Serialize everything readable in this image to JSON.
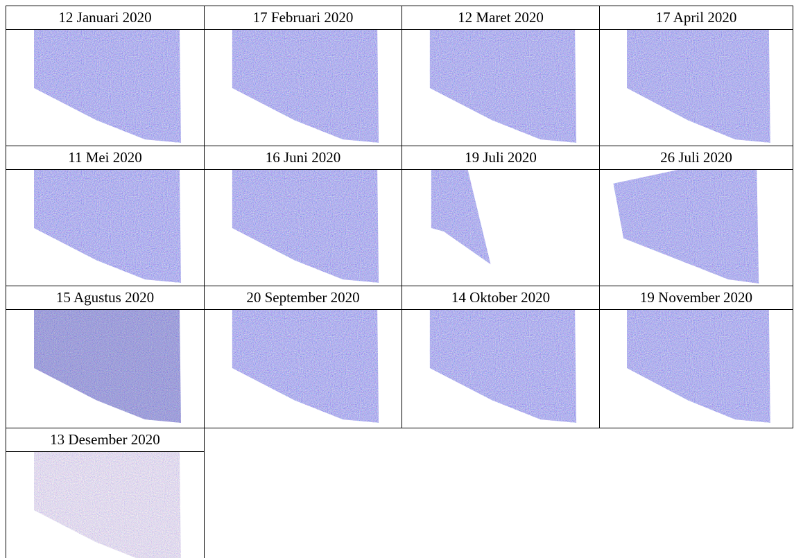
{
  "table": {
    "captions": [
      "12 Januari 2020",
      "17 Februari 2020",
      "12 Maret 2020",
      "17 April 2020",
      "11 Mei 2020",
      "16 Juni 2020",
      "19 Juli 2020",
      "26 Juli 2020",
      "15 Agustus 2020",
      "20 September 2020",
      "14 Oktober 2020",
      "19 November 2020",
      "13 Desember 2020"
    ]
  }
}
